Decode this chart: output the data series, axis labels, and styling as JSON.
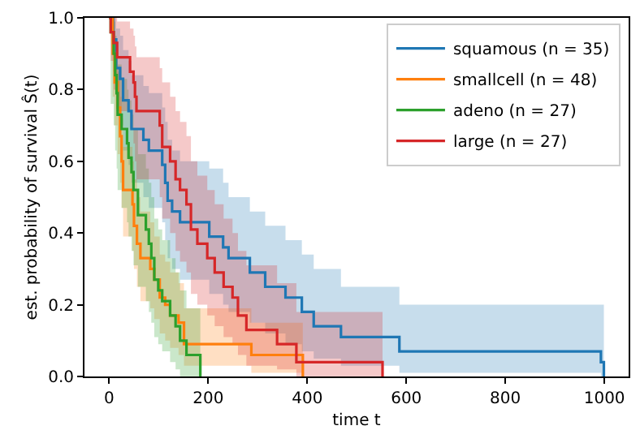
{
  "chart_data": {
    "type": "step",
    "xlabel": "time t",
    "ylabel": "est. probability of survival Ŝ(t)",
    "xlim": [
      -50,
      1049
    ],
    "xticks": [
      0,
      200,
      400,
      600,
      800,
      1000
    ],
    "ylim": [
      0,
      1
    ],
    "yticks": [
      {
        "value": 0,
        "label": "0.0"
      },
      {
        "value": 0.2,
        "label": "0.2"
      },
      {
        "value": 0.4,
        "label": "0.4"
      },
      {
        "value": 0.6,
        "label": "0.6"
      },
      {
        "value": 0.8,
        "label": "0.8"
      },
      {
        "value": 1,
        "label": "1.0"
      }
    ],
    "grid": false,
    "legend": "top right",
    "line_style": "solid",
    "marker": "none",
    "series": [
      {
        "name": "squamous (n = 35)",
        "color": "#1f77b4",
        "x": [
          0,
          8,
          14,
          22,
          28,
          39,
          45,
          69,
          80,
          107,
          113,
          118,
          127,
          143,
          202,
          230,
          241,
          284,
          315,
          356,
          389,
          413,
          468,
          586,
          993,
          999
        ],
        "values": [
          1.0,
          0.94,
          0.86,
          0.83,
          0.77,
          0.74,
          0.69,
          0.66,
          0.63,
          0.59,
          0.54,
          0.49,
          0.46,
          0.43,
          0.39,
          0.36,
          0.33,
          0.29,
          0.25,
          0.22,
          0.18,
          0.14,
          0.11,
          0.07,
          0.04,
          0.0
        ],
        "upper": [
          1,
          1,
          0.97,
          0.95,
          0.91,
          0.88,
          0.84,
          0.81,
          0.79,
          0.75,
          0.71,
          0.66,
          0.63,
          0.6,
          0.58,
          0.54,
          0.5,
          0.46,
          0.42,
          0.38,
          0.34,
          0.3,
          0.25,
          0.2,
          0.2,
          0.2
        ],
        "lower": [
          1,
          0.85,
          0.74,
          0.7,
          0.63,
          0.59,
          0.54,
          0.5,
          0.47,
          0.43,
          0.38,
          0.33,
          0.3,
          0.27,
          0.23,
          0.2,
          0.18,
          0.15,
          0.12,
          0.09,
          0.07,
          0.05,
          0.03,
          0.01,
          0.0,
          0.0
        ]
      },
      {
        "name": "smallcell (n = 48)",
        "color": "#ff7f0e",
        "x": [
          0,
          7,
          11,
          17,
          22,
          25,
          28,
          47,
          50,
          56,
          63,
          83,
          91,
          102,
          113,
          123,
          140,
          151,
          287,
          391
        ],
        "values": [
          1,
          0.9,
          0.82,
          0.75,
          0.67,
          0.6,
          0.52,
          0.48,
          0.42,
          0.37,
          0.33,
          0.3,
          0.27,
          0.22,
          0.2,
          0.17,
          0.15,
          0.09,
          0.06,
          0
        ],
        "upper": [
          1,
          0.97,
          0.91,
          0.85,
          0.78,
          0.72,
          0.64,
          0.6,
          0.55,
          0.5,
          0.46,
          0.43,
          0.39,
          0.34,
          0.32,
          0.29,
          0.26,
          0.19,
          0.15,
          0.15
        ],
        "lower": [
          1,
          0.78,
          0.7,
          0.62,
          0.54,
          0.47,
          0.39,
          0.35,
          0.3,
          0.25,
          0.21,
          0.19,
          0.16,
          0.12,
          0.1,
          0.08,
          0.06,
          0.03,
          0.01,
          0
        ]
      },
      {
        "name": "adeno (n = 27)",
        "color": "#2ca02c",
        "x": [
          0,
          3,
          9,
          12,
          15,
          17,
          25,
          36,
          39,
          45,
          49,
          58,
          74,
          80,
          85,
          91,
          99,
          107,
          123,
          134,
          143,
          156,
          184
        ],
        "values": [
          1,
          0.96,
          0.9,
          0.84,
          0.79,
          0.73,
          0.69,
          0.65,
          0.61,
          0.57,
          0.52,
          0.45,
          0.41,
          0.37,
          0.33,
          0.27,
          0.24,
          0.21,
          0.17,
          0.14,
          0.1,
          0.06,
          0
        ],
        "upper": [
          1,
          1,
          0.99,
          0.95,
          0.91,
          0.87,
          0.83,
          0.8,
          0.77,
          0.73,
          0.69,
          0.62,
          0.58,
          0.54,
          0.5,
          0.44,
          0.41,
          0.38,
          0.33,
          0.29,
          0.24,
          0.19,
          0.19
        ],
        "lower": [
          1,
          0.76,
          0.7,
          0.63,
          0.58,
          0.52,
          0.47,
          0.43,
          0.39,
          0.35,
          0.31,
          0.25,
          0.21,
          0.18,
          0.15,
          0.11,
          0.09,
          0.07,
          0.04,
          0.02,
          0.0,
          0.0,
          0
        ]
      },
      {
        "name": "large (n = 27)",
        "color": "#d62728",
        "x": [
          0,
          3,
          9,
          16,
          42,
          49,
          52,
          55,
          102,
          107,
          123,
          134,
          143,
          156,
          165,
          178,
          198,
          213,
          231,
          249,
          260,
          277,
          339,
          378,
          552
        ],
        "values": [
          1,
          0.96,
          0.93,
          0.89,
          0.85,
          0.82,
          0.78,
          0.74,
          0.7,
          0.64,
          0.6,
          0.55,
          0.52,
          0.48,
          0.41,
          0.37,
          0.33,
          0.29,
          0.25,
          0.22,
          0.17,
          0.13,
          0.09,
          0.04,
          0
        ],
        "upper": [
          1,
          1,
          1,
          0.99,
          0.97,
          0.95,
          0.92,
          0.89,
          0.86,
          0.82,
          0.78,
          0.74,
          0.71,
          0.67,
          0.6,
          0.56,
          0.52,
          0.48,
          0.44,
          0.4,
          0.35,
          0.31,
          0.26,
          0.18,
          0.18
        ],
        "lower": [
          1,
          0.88,
          0.8,
          0.74,
          0.69,
          0.65,
          0.6,
          0.55,
          0.5,
          0.44,
          0.4,
          0.35,
          0.32,
          0.29,
          0.23,
          0.2,
          0.17,
          0.14,
          0.11,
          0.09,
          0.06,
          0.03,
          0.02,
          0.0,
          0
        ]
      }
    ]
  }
}
